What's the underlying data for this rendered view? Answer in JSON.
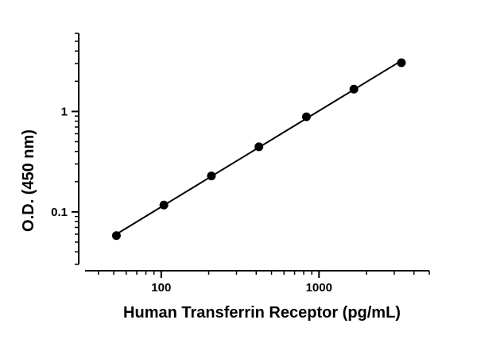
{
  "chart_data": {
    "type": "scatter",
    "xlabel": "Human Transferrin Receptor (pg/mL)",
    "ylabel": "O.D. (450 nm)",
    "xscale": "log",
    "yscale": "log",
    "xlim": [
      30,
      5000
    ],
    "ylim": [
      0.03,
      6
    ],
    "x_ticks": [
      100,
      1000
    ],
    "x_tick_labels": [
      "100",
      "1000"
    ],
    "y_ticks": [
      0.1,
      1
    ],
    "y_tick_labels": [
      "0.1",
      "1"
    ],
    "grid": false,
    "legend": "none",
    "series": [
      {
        "x": [
          52,
          104,
          208,
          416,
          832,
          1664,
          3328
        ],
        "y": [
          0.058,
          0.117,
          0.228,
          0.445,
          0.885,
          1.67,
          3.06
        ],
        "marker": "circle",
        "line": "fit",
        "color": "#000000"
      }
    ]
  }
}
